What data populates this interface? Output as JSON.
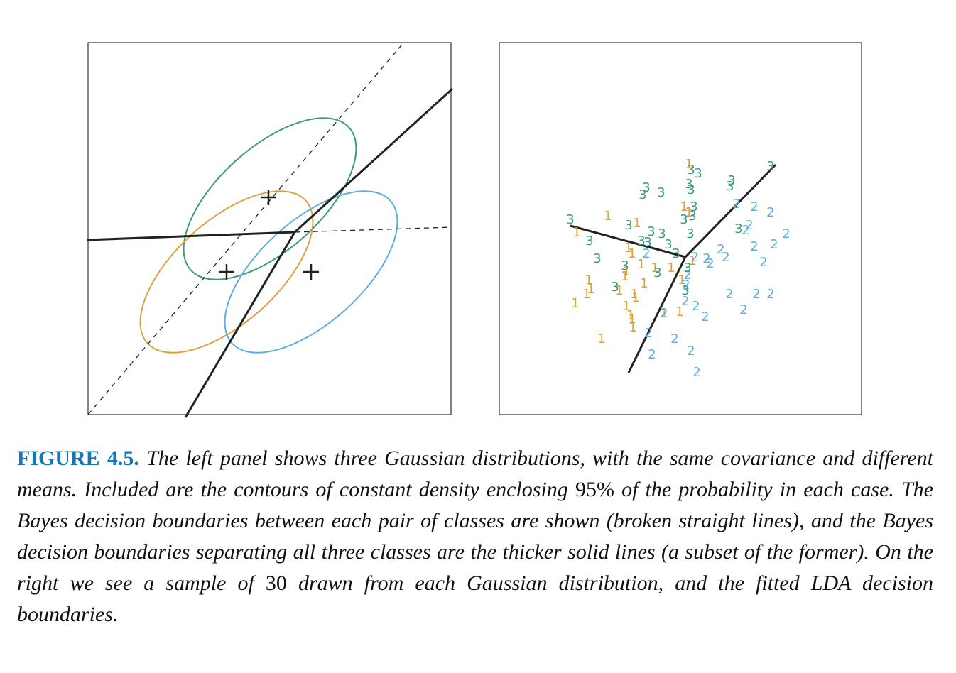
{
  "chart_data": {
    "type": "scatter",
    "xlim": [
      0,
      510
    ],
    "ylim": [
      0,
      524
    ],
    "series": [
      {
        "name": "1",
        "color": "#dba23c",
        "x": [
          267,
          260,
          153,
          194,
          109,
          182,
          187,
          200,
          179,
          242,
          219,
          204,
          126,
          129,
          123,
          107,
          169,
          190,
          179,
          187,
          188,
          232,
          254,
          144,
          272,
          177,
          192,
          185,
          267,
          257
        ],
        "y": [
          352,
          292,
          279,
          269,
          256,
          234,
          226,
          211,
          201,
          206,
          206,
          184,
          189,
          176,
          169,
          156,
          174,
          169,
          152,
          134,
          122,
          142,
          144,
          106,
          216,
          194,
          164,
          139,
          284,
          189
        ]
      },
      {
        "name": "2",
        "color": "#5eaedd",
        "x": [
          334,
          359,
          382,
          404,
          387,
          359,
          352,
          372,
          312,
          319,
          292,
          275,
          297,
          207,
          265,
          263,
          262,
          277,
          290,
          232,
          324,
          344,
          362,
          382,
          210,
          247,
          270,
          215,
          278,
          347
        ],
        "y": [
          296,
          292,
          284,
          254,
          239,
          236,
          266,
          214,
          232,
          221,
          219,
          221,
          212,
          226,
          196,
          182,
          159,
          152,
          137,
          142,
          169,
          147,
          169,
          169,
          114,
          106,
          89,
          84,
          59,
          259
        ]
      },
      {
        "name": "3",
        "color": "#3b9b78",
        "x": [
          270,
          280,
          327,
          325,
          382,
          207,
          202,
          228,
          267,
          270,
          274,
          272,
          260,
          269,
          100,
          127,
          138,
          182,
          214,
          229,
          200,
          209,
          238,
          249,
          177,
          223,
          163,
          262,
          337,
          265
        ],
        "y": [
          344,
          339,
          329,
          321,
          349,
          319,
          309,
          312,
          324,
          316,
          292,
          279,
          274,
          254,
          274,
          244,
          219,
          266,
          257,
          254,
          244,
          242,
          239,
          226,
          209,
          199,
          179,
          174,
          261,
          206
        ]
      }
    ]
  },
  "caption": {
    "label": "FIGURE 4.5.",
    "parts": [
      "The left panel shows three Gaussian distributions, with the same covariance and different means. Included are the contours of constant density enclosing ",
      "95%",
      " of the probability in each case. The Bayes decision boundaries between each pair of classes are shown (broken straight lines), and the Bayes decision boundaries separating all three classes are the thicker solid lines (a subset of the former). On the right we see a sample of ",
      "30",
      " drawn from each Gaussian distribution, and the fitted LDA decision boundaries."
    ]
  }
}
